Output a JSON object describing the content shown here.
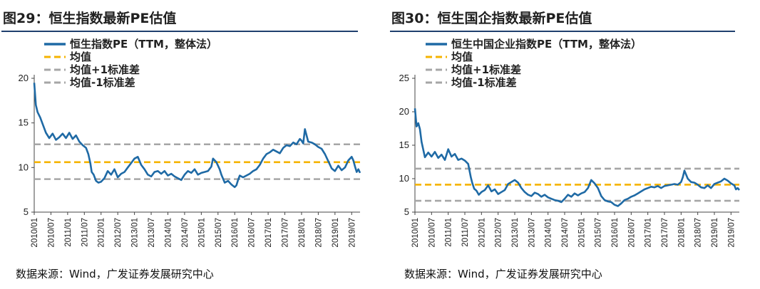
{
  "charts": [
    {
      "figure_title": "图29：恒生指数最新PE估值",
      "source": "数据来源：Wind，广发证券发展研究中心",
      "legend": [
        "恒生指数PE（TTM，整体法）",
        "均值",
        "均值+1标准差",
        "均值-1标准差"
      ]
    },
    {
      "figure_title": "图30：恒生国企指数最新PE估值",
      "source": "数据来源：Wind，广发证券发展研究中心",
      "legend": [
        "恒生中国企业指数PE（TTM，整体法）",
        "均值",
        "均值+1标准差",
        "均值-1标准差"
      ]
    }
  ],
  "colors": {
    "series": "#1f6aa5",
    "mean": "#f5b300",
    "band": "#a6a6a6",
    "title_rule": "#1f3f6e"
  },
  "chart_data": [
    {
      "type": "line",
      "title": "恒生指数PE（TTM，整体法）",
      "ylim": [
        5,
        20
      ],
      "yticks": [
        5,
        10,
        15,
        20
      ],
      "xlim": [
        2010.0,
        2019.75
      ],
      "categories": [
        "2010/01",
        "2010/07",
        "2011/01",
        "2011/07",
        "2012/01",
        "2012/07",
        "2013/01",
        "2013/07",
        "2014/01",
        "2014/07",
        "2015/01",
        "2015/07",
        "2016/01",
        "2016/07",
        "2017/01",
        "2017/07",
        "2018/01",
        "2018/07",
        "2019/01",
        "2019/07"
      ],
      "reference_lines": [
        {
          "name": "均值",
          "value": 10.6
        },
        {
          "name": "均值+1标准差",
          "value": 12.6
        },
        {
          "name": "均值-1标准差",
          "value": 8.7
        }
      ],
      "series": [
        {
          "name": "恒生指数PE（TTM，整体法）",
          "x": [
            2010.0,
            2010.05,
            2010.1,
            2010.18,
            2010.25,
            2010.35,
            2010.45,
            2010.55,
            2010.65,
            2010.75,
            2010.85,
            2010.95,
            2011.05,
            2011.15,
            2011.25,
            2011.35,
            2011.45,
            2011.55,
            2011.62,
            2011.68,
            2011.72,
            2011.78,
            2011.85,
            2011.92,
            2012.0,
            2012.1,
            2012.2,
            2012.3,
            2012.4,
            2012.5,
            2012.6,
            2012.7,
            2012.8,
            2012.9,
            2013.0,
            2013.1,
            2013.2,
            2013.3,
            2013.4,
            2013.5,
            2013.6,
            2013.7,
            2013.8,
            2013.9,
            2014.0,
            2014.1,
            2014.2,
            2014.3,
            2014.4,
            2014.5,
            2014.6,
            2014.7,
            2014.8,
            2014.9,
            2015.0,
            2015.1,
            2015.2,
            2015.3,
            2015.35,
            2015.45,
            2015.55,
            2015.6,
            2015.7,
            2015.8,
            2015.9,
            2016.0,
            2016.05,
            2016.1,
            2016.15,
            2016.25,
            2016.35,
            2016.45,
            2016.55,
            2016.65,
            2016.75,
            2016.85,
            2016.95,
            2017.05,
            2017.15,
            2017.25,
            2017.35,
            2017.45,
            2017.55,
            2017.65,
            2017.75,
            2017.85,
            2017.95,
            2018.0,
            2018.05,
            2018.1,
            2018.2,
            2018.3,
            2018.4,
            2018.5,
            2018.6,
            2018.7,
            2018.8,
            2018.9,
            2019.0,
            2019.1,
            2019.2,
            2019.3,
            2019.4,
            2019.5,
            2019.55,
            2019.6,
            2019.65,
            2019.7,
            2019.75
          ],
          "values": [
            19.5,
            17.0,
            16.2,
            15.6,
            14.9,
            13.9,
            13.3,
            13.8,
            13.1,
            13.4,
            13.8,
            13.3,
            13.9,
            13.2,
            13.6,
            12.9,
            12.5,
            12.2,
            11.5,
            10.5,
            9.5,
            9.2,
            8.5,
            8.3,
            8.4,
            8.8,
            9.6,
            9.2,
            9.8,
            8.9,
            9.3,
            9.5,
            10.0,
            10.5,
            11.0,
            11.2,
            10.3,
            9.8,
            9.2,
            9.0,
            9.5,
            9.6,
            9.3,
            9.6,
            9.1,
            9.3,
            9.0,
            8.8,
            8.6,
            9.2,
            9.6,
            9.4,
            9.8,
            9.2,
            9.4,
            9.5,
            9.6,
            10.1,
            11.0,
            10.6,
            9.8,
            9.2,
            8.3,
            8.5,
            8.1,
            7.8,
            8.0,
            8.6,
            9.1,
            8.9,
            9.1,
            9.3,
            9.6,
            9.8,
            10.3,
            11.0,
            11.5,
            11.7,
            12.0,
            11.8,
            11.6,
            12.2,
            12.5,
            12.4,
            12.8,
            12.6,
            13.2,
            13.0,
            12.7,
            14.3,
            12.9,
            12.8,
            12.6,
            12.3,
            12.1,
            11.5,
            10.7,
            9.9,
            9.6,
            10.2,
            9.7,
            10.0,
            10.8,
            11.2,
            10.8,
            10.1,
            9.5,
            9.8,
            9.4
          ]
        }
      ]
    },
    {
      "type": "line",
      "title": "恒生中国企业指数PE（TTM，整体法）",
      "ylim": [
        5,
        25
      ],
      "yticks": [
        5,
        10,
        15,
        20,
        25
      ],
      "xlim": [
        2010.0,
        2019.75
      ],
      "categories": [
        "2010/01",
        "2010/07",
        "2011/01",
        "2011/07",
        "2012/01",
        "2012/07",
        "2013/01",
        "2013/07",
        "2014/01",
        "2014/07",
        "2015/01",
        "2015/07",
        "2016/01",
        "2016/07",
        "2017/01",
        "2017/07",
        "2018/01",
        "2018/07",
        "2019/01",
        "2019/07"
      ],
      "reference_lines": [
        {
          "name": "均值",
          "value": 9.1
        },
        {
          "name": "均值+1标准差",
          "value": 11.5
        },
        {
          "name": "均值-1标准差",
          "value": 6.7
        }
      ],
      "series": [
        {
          "name": "恒生中国企业指数PE（TTM，整体法）",
          "x": [
            2010.0,
            2010.05,
            2010.1,
            2010.15,
            2010.2,
            2010.3,
            2010.4,
            2010.5,
            2010.6,
            2010.7,
            2010.8,
            2010.9,
            2011.0,
            2011.1,
            2011.2,
            2011.3,
            2011.4,
            2011.5,
            2011.6,
            2011.68,
            2011.72,
            2011.78,
            2011.85,
            2011.92,
            2012.0,
            2012.1,
            2012.2,
            2012.3,
            2012.4,
            2012.5,
            2012.6,
            2012.7,
            2012.8,
            2012.9,
            2013.0,
            2013.1,
            2013.2,
            2013.3,
            2013.4,
            2013.5,
            2013.6,
            2013.7,
            2013.8,
            2013.9,
            2014.0,
            2014.1,
            2014.2,
            2014.3,
            2014.4,
            2014.5,
            2014.6,
            2014.7,
            2014.8,
            2014.9,
            2015.0,
            2015.1,
            2015.2,
            2015.3,
            2015.4,
            2015.5,
            2015.6,
            2015.7,
            2015.8,
            2015.9,
            2016.0,
            2016.1,
            2016.2,
            2016.3,
            2016.4,
            2016.5,
            2016.6,
            2016.7,
            2016.8,
            2016.9,
            2017.0,
            2017.1,
            2017.2,
            2017.3,
            2017.4,
            2017.5,
            2017.6,
            2017.7,
            2017.8,
            2017.9,
            2018.0,
            2018.05,
            2018.1,
            2018.2,
            2018.3,
            2018.4,
            2018.5,
            2018.6,
            2018.7,
            2018.8,
            2018.9,
            2019.0,
            2019.1,
            2019.2,
            2019.3,
            2019.4,
            2019.5,
            2019.6,
            2019.65,
            2019.7,
            2019.75
          ],
          "values": [
            20.5,
            17.8,
            18.3,
            17.4,
            15.5,
            13.2,
            13.9,
            13.3,
            14.0,
            13.1,
            13.6,
            12.8,
            14.4,
            13.3,
            13.7,
            12.8,
            13.0,
            12.7,
            12.2,
            10.2,
            9.4,
            8.5,
            8.2,
            7.6,
            8.0,
            8.3,
            9.0,
            8.1,
            8.4,
            7.7,
            8.0,
            8.3,
            9.2,
            9.5,
            9.8,
            9.4,
            8.6,
            8.0,
            7.6,
            7.4,
            7.9,
            7.7,
            7.3,
            7.6,
            7.2,
            7.0,
            6.8,
            6.7,
            6.5,
            7.0,
            7.6,
            7.3,
            7.8,
            7.5,
            7.8,
            8.0,
            8.6,
            9.8,
            9.3,
            8.6,
            7.4,
            6.8,
            6.6,
            6.5,
            6.1,
            5.9,
            6.3,
            6.8,
            7.0,
            7.3,
            7.5,
            7.8,
            8.1,
            8.4,
            8.6,
            8.8,
            8.7,
            8.9,
            8.6,
            8.9,
            9.0,
            9.1,
            9.2,
            9.1,
            9.5,
            10.2,
            11.2,
            10.0,
            9.5,
            9.4,
            9.1,
            8.7,
            8.6,
            9.0,
            8.6,
            9.2,
            9.4,
            9.6,
            10.0,
            9.7,
            9.3,
            9.0,
            8.4,
            8.6,
            8.3
          ]
        }
      ]
    }
  ]
}
